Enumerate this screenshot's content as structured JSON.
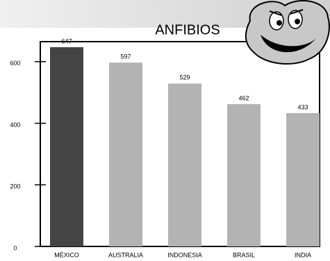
{
  "chart_data": {
    "type": "bar",
    "title": "ANFIBIOS",
    "categories": [
      "MÉXICO",
      "AUSTRALIA",
      "INDONESIA",
      "BRASIL",
      "INDIA"
    ],
    "values": [
      647,
      597,
      529,
      462,
      433
    ],
    "colors": [
      "#444444",
      "#b3b3b3",
      "#b3b3b3",
      "#b3b3b3",
      "#b3b3b3"
    ],
    "ylim": [
      0,
      665
    ],
    "yticks": [
      0,
      200,
      400,
      600
    ]
  }
}
